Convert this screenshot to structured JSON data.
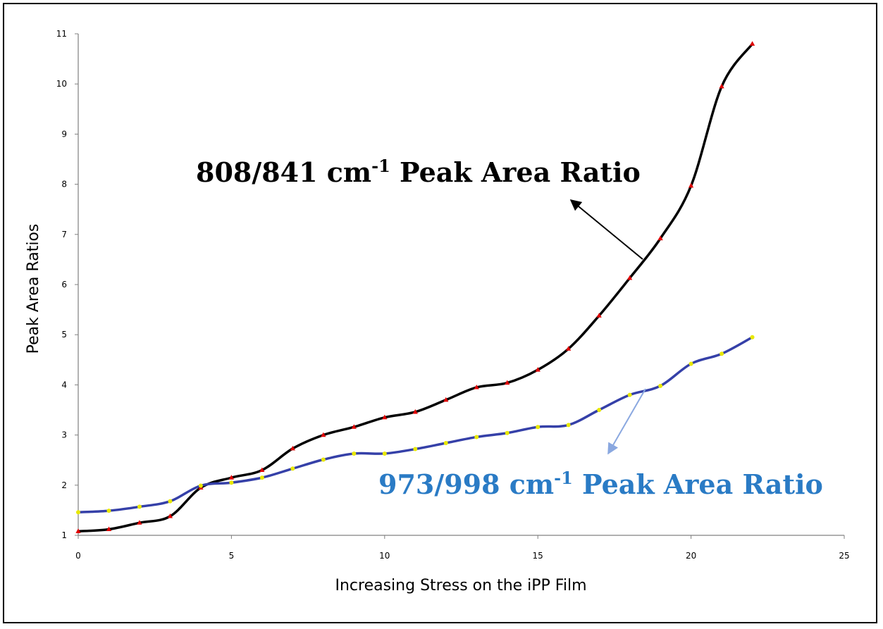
{
  "chart_data": {
    "type": "line",
    "xlabel": "Increasing Stress on the iPP Film",
    "ylabel": "Peak Area Ratios",
    "xlim": [
      0,
      25
    ],
    "ylim": [
      1,
      11
    ],
    "x_ticks": [
      0,
      5,
      10,
      15,
      20,
      25
    ],
    "y_ticks": [
      1,
      2,
      3,
      4,
      5,
      6,
      7,
      8,
      9,
      10,
      11
    ],
    "grid": false,
    "legend": "none",
    "series": [
      {
        "key": "s808",
        "color": "#000000",
        "marker_color": "#e00000",
        "marker": "triangle",
        "x": [
          0,
          1,
          2,
          3,
          4,
          5,
          6,
          7,
          8,
          9,
          10,
          11,
          12,
          13,
          14,
          15,
          16,
          17,
          18,
          19,
          20,
          21,
          22
        ],
        "y": [
          1.08,
          1.12,
          1.25,
          1.38,
          1.95,
          2.15,
          2.3,
          2.73,
          3.0,
          3.16,
          3.35,
          3.46,
          3.7,
          3.95,
          4.04,
          4.3,
          4.72,
          5.38,
          6.13,
          6.92,
          7.97,
          9.95,
          10.8
        ]
      },
      {
        "key": "s973",
        "color": "#3540a8",
        "marker_color": "#e8e800",
        "marker": "circle",
        "x": [
          0,
          1,
          2,
          3,
          4,
          5,
          6,
          7,
          8,
          9,
          10,
          11,
          12,
          13,
          14,
          15,
          16,
          17,
          18,
          19,
          20,
          21,
          22
        ],
        "y": [
          1.46,
          1.49,
          1.57,
          1.68,
          1.99,
          2.05,
          2.15,
          2.33,
          2.51,
          2.63,
          2.63,
          2.72,
          2.84,
          2.96,
          3.04,
          3.16,
          3.2,
          3.5,
          3.8,
          3.98,
          4.42,
          4.62,
          4.95
        ]
      }
    ],
    "annotations": [
      {
        "key": "a808",
        "base": "808/841 cm",
        "sup": "-1",
        "rest": " Peak Area Ratio",
        "color": "#000000",
        "arrow_color": "#000000"
      },
      {
        "key": "a973",
        "base": "973/998 cm",
        "sup": "-1",
        "rest": " Peak Area Ratio",
        "color": "#2a7bc5",
        "arrow_color": "#8aa8e0"
      }
    ]
  }
}
